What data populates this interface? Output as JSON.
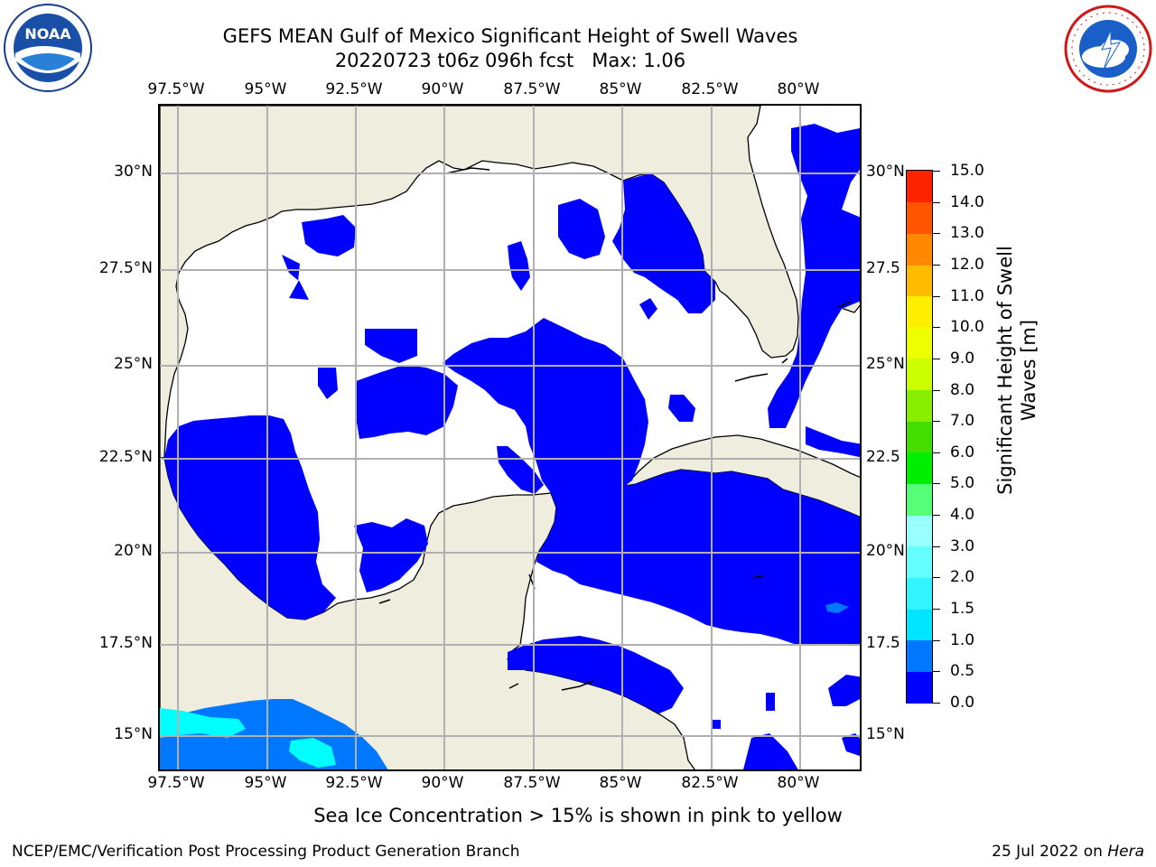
{
  "title": {
    "line1": "GEFS MEAN Gulf of Mexico Significant Height of Swell Waves",
    "line2": "20220723 t06z 096h fcst   Max: 1.06"
  },
  "logos": {
    "left": {
      "name": "noaa-logo",
      "text": "NOAA",
      "ring_text": "NATIONAL OCEANIC AND ATMOSPHERIC ADMINISTRATION · U.S. DEPARTMENT OF COMMERCE"
    },
    "right": {
      "name": "nws-logo",
      "ring_text": "NATIONAL WEATHER SERVICE"
    }
  },
  "map": {
    "lon_labels": [
      "97.5°W",
      "95°W",
      "92.5°W",
      "90°W",
      "87.5°W",
      "85°W",
      "82.5°W",
      "80°W"
    ],
    "lat_labels": [
      "30°N",
      "27.5°N",
      "25°N",
      "22.5°N",
      "20°N",
      "17.5°N",
      "15°N"
    ],
    "lat_labels_right": [
      "30°N",
      "27.5",
      "25°N",
      "22.5",
      "20°N",
      "17.5",
      "15°N"
    ],
    "grid": true,
    "land_color": "#efedde",
    "ocean_color": "#ffffff"
  },
  "colorbar": {
    "label": "Significant Height of Swell Waves [m]",
    "label_line1": "Significant Height of Swell",
    "label_line2": "Waves [m]",
    "ticks": [
      "0.0",
      "0.5",
      "1.0",
      "1.5",
      "2.0",
      "3.0",
      "4.0",
      "5.0",
      "6.0",
      "7.0",
      "8.0",
      "9.0",
      "10.0",
      "11.0",
      "12.0",
      "13.0",
      "14.0",
      "15.0"
    ],
    "colors": [
      "#0000ff",
      "#0077ff",
      "#00e5ff",
      "#33f5ff",
      "#66ffff",
      "#99ffff",
      "#55ff77",
      "#00ee00",
      "#44dd00",
      "#88ee00",
      "#ccff00",
      "#eeff00",
      "#ffee00",
      "#ffbb00",
      "#ff8800",
      "#ff5500",
      "#ff2200",
      "#ff0000"
    ]
  },
  "legend_note": "Sea Ice Concentration > 15% is shown in pink to yellow",
  "footer": {
    "left": "NCEP/EMC/Verification Post Processing Product Generation Branch",
    "date": "25 Jul 2022 on ",
    "host": "Hera"
  }
}
